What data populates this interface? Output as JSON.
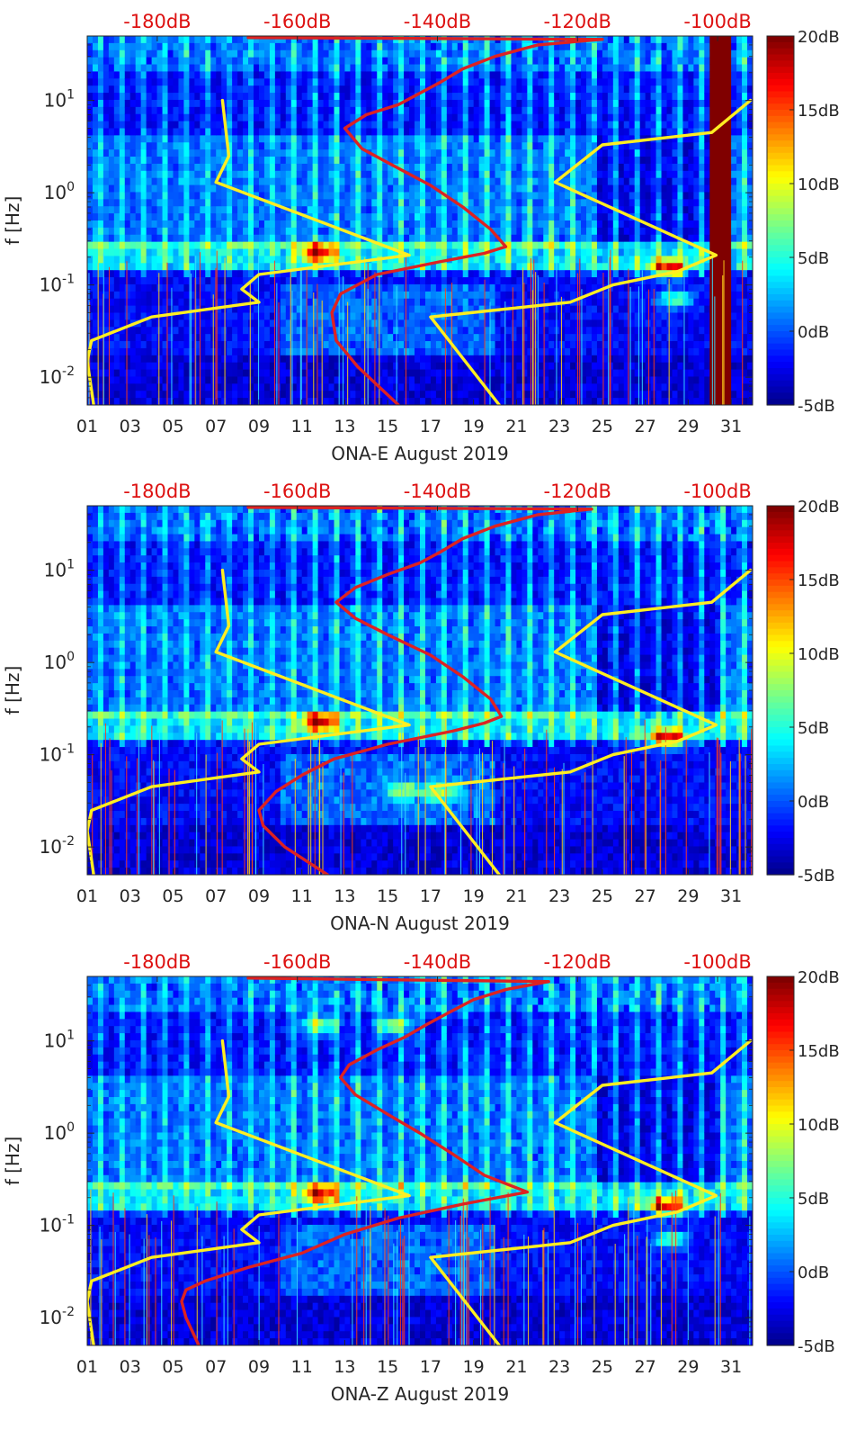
{
  "chart_data": [
    {
      "type": "heatmap",
      "station": "ONA-E",
      "xlabel": "ONA-E August 2019",
      "ylabel": "f [Hz]",
      "x_ticks": [
        "01",
        "03",
        "05",
        "07",
        "09",
        "11",
        "13",
        "15",
        "17",
        "19",
        "21",
        "23",
        "25",
        "27",
        "29",
        "31"
      ],
      "y_ticks": [
        "10^-2",
        "10^-1",
        "10^0",
        "10^1"
      ],
      "top_axis_ticks": [
        "-180dB",
        "-160dB",
        "-140dB",
        "-120dB",
        "-100dB"
      ],
      "colorbar": {
        "ticks": [
          "20dB",
          "15dB",
          "10dB",
          "5dB",
          "0dB",
          "-5dB"
        ],
        "range": [
          -5,
          20
        ],
        "colormap": "jet"
      },
      "xlim": [
        1,
        32
      ],
      "ylim": [
        0.005,
        50
      ],
      "log_y": true,
      "top_xlim": [
        -190,
        -95
      ],
      "highlights": [
        {
          "day": 11.8,
          "f": 0.22,
          "level": 17
        },
        {
          "day": 28.1,
          "f": 0.15,
          "level": 17
        },
        {
          "day": 28.4,
          "f": 0.07,
          "level": 11
        }
      ],
      "saturated_band": {
        "day_from": 30.1,
        "day_to": 31.0
      },
      "series": [
        {
          "role": "yellow-curve",
          "color": "#ffee22",
          "points": [
            [
              1.3,
              0.005
            ],
            [
              1.0,
              0.015
            ],
            [
              1.2,
              0.025
            ],
            [
              4.0,
              0.045
            ],
            [
              9.0,
              0.065
            ],
            [
              8.2,
              0.09
            ],
            [
              9.0,
              0.13
            ],
            [
              16.0,
              0.21
            ],
            [
              7.0,
              1.3
            ],
            [
              7.6,
              2.5
            ],
            [
              7.3,
              10.0
            ]
          ]
        },
        {
          "role": "yellow-curve",
          "color": "#ffee22",
          "points": [
            [
              20.2,
              0.005
            ],
            [
              17.0,
              0.045
            ],
            [
              23.5,
              0.065
            ],
            [
              25.5,
              0.1
            ],
            [
              28.5,
              0.14
            ],
            [
              30.3,
              0.21
            ],
            [
              22.8,
              1.3
            ],
            [
              25.0,
              3.3
            ],
            [
              30.1,
              4.5
            ],
            [
              31.9,
              10.0
            ]
          ]
        },
        {
          "role": "red-curve",
          "color": "#dd2222",
          "points": [
            [
              15.5,
              0.005
            ],
            [
              13.6,
              0.013
            ],
            [
              12.6,
              0.025
            ],
            [
              12.4,
              0.05
            ],
            [
              12.8,
              0.08
            ],
            [
              14.5,
              0.13
            ],
            [
              17.5,
              0.18
            ],
            [
              19.5,
              0.22
            ],
            [
              20.5,
              0.26
            ],
            [
              19.8,
              0.4
            ],
            [
              18.5,
              0.7
            ],
            [
              17.0,
              1.2
            ],
            [
              15.2,
              2.0
            ],
            [
              13.8,
              3.0
            ],
            [
              13.0,
              5.0
            ],
            [
              14.0,
              7.0
            ],
            [
              15.5,
              9.0
            ],
            [
              16.5,
              12.0
            ],
            [
              17.5,
              16.0
            ],
            [
              18.5,
              22.0
            ],
            [
              20.0,
              30.0
            ],
            [
              22.0,
              40.0
            ],
            [
              25.0,
              46.0
            ],
            [
              8.5,
              48.0
            ]
          ]
        }
      ]
    },
    {
      "type": "heatmap",
      "station": "ONA-N",
      "xlabel": "ONA-N August 2019",
      "ylabel": "f [Hz]",
      "x_ticks": [
        "01",
        "03",
        "05",
        "07",
        "09",
        "11",
        "13",
        "15",
        "17",
        "19",
        "21",
        "23",
        "25",
        "27",
        "29",
        "31"
      ],
      "y_ticks": [
        "10^-2",
        "10^-1",
        "10^0",
        "10^1"
      ],
      "top_axis_ticks": [
        "-180dB",
        "-160dB",
        "-140dB",
        "-120dB",
        "-100dB"
      ],
      "colorbar": {
        "ticks": [
          "20dB",
          "15dB",
          "10dB",
          "5dB",
          "0dB",
          "-5dB"
        ],
        "range": [
          -5,
          20
        ],
        "colormap": "jet"
      },
      "xlim": [
        1,
        32
      ],
      "ylim": [
        0.005,
        50
      ],
      "log_y": true,
      "top_xlim": [
        -190,
        -95
      ],
      "highlights": [
        {
          "day": 11.8,
          "f": 0.22,
          "level": 17
        },
        {
          "day": 28.0,
          "f": 0.15,
          "level": 17
        },
        {
          "day": 15.7,
          "f": 0.04,
          "level": 11
        },
        {
          "day": 17.5,
          "f": 0.04,
          "level": 11
        }
      ],
      "saturated_band": {
        "day_from": 28.9,
        "day_to": 29.1
      },
      "series": [
        {
          "role": "yellow-curve",
          "color": "#ffee22",
          "points": [
            [
              1.3,
              0.005
            ],
            [
              1.0,
              0.015
            ],
            [
              1.2,
              0.025
            ],
            [
              4.0,
              0.045
            ],
            [
              9.0,
              0.065
            ],
            [
              8.2,
              0.09
            ],
            [
              9.0,
              0.13
            ],
            [
              16.0,
              0.21
            ],
            [
              7.0,
              1.3
            ],
            [
              7.6,
              2.5
            ],
            [
              7.3,
              10.0
            ]
          ]
        },
        {
          "role": "yellow-curve",
          "color": "#ffee22",
          "points": [
            [
              20.2,
              0.005
            ],
            [
              17.0,
              0.045
            ],
            [
              23.5,
              0.065
            ],
            [
              25.5,
              0.1
            ],
            [
              28.5,
              0.14
            ],
            [
              30.3,
              0.21
            ],
            [
              22.8,
              1.3
            ],
            [
              25.0,
              3.3
            ],
            [
              30.1,
              4.5
            ],
            [
              31.9,
              10.0
            ]
          ]
        },
        {
          "role": "red-curve",
          "color": "#dd2222",
          "points": [
            [
              12.2,
              0.005
            ],
            [
              10.2,
              0.01
            ],
            [
              9.2,
              0.017
            ],
            [
              9.0,
              0.025
            ],
            [
              9.8,
              0.04
            ],
            [
              11.0,
              0.06
            ],
            [
              12.5,
              0.09
            ],
            [
              15.0,
              0.13
            ],
            [
              18.0,
              0.18
            ],
            [
              19.5,
              0.22
            ],
            [
              20.3,
              0.26
            ],
            [
              19.8,
              0.4
            ],
            [
              18.5,
              0.7
            ],
            [
              17.0,
              1.2
            ],
            [
              15.0,
              2.0
            ],
            [
              13.5,
              3.0
            ],
            [
              12.6,
              4.5
            ],
            [
              13.5,
              6.5
            ],
            [
              15.0,
              9.0
            ],
            [
              16.5,
              12.0
            ],
            [
              17.5,
              16.0
            ],
            [
              18.5,
              22.0
            ],
            [
              20.0,
              30.0
            ],
            [
              22.0,
              40.0
            ],
            [
              24.5,
              46.0
            ],
            [
              8.5,
              48.0
            ]
          ]
        }
      ]
    },
    {
      "type": "heatmap",
      "station": "ONA-Z",
      "xlabel": "ONA-Z August 2019",
      "ylabel": "f [Hz]",
      "x_ticks": [
        "01",
        "03",
        "05",
        "07",
        "09",
        "11",
        "13",
        "15",
        "17",
        "19",
        "21",
        "23",
        "25",
        "27",
        "29",
        "31"
      ],
      "y_ticks": [
        "10^-2",
        "10^-1",
        "10^0",
        "10^1"
      ],
      "top_axis_ticks": [
        "-180dB",
        "-160dB",
        "-140dB",
        "-120dB",
        "-100dB"
      ],
      "colorbar": {
        "ticks": [
          "20dB",
          "15dB",
          "10dB",
          "5dB",
          "0dB",
          "-5dB"
        ],
        "range": [
          -5,
          20
        ],
        "colormap": "jet"
      },
      "xlim": [
        1,
        32
      ],
      "ylim": [
        0.005,
        50
      ],
      "log_y": true,
      "top_xlim": [
        -190,
        -95
      ],
      "highlights": [
        {
          "day": 11.9,
          "f": 0.22,
          "level": 17
        },
        {
          "day": 28.0,
          "f": 0.16,
          "level": 17
        },
        {
          "day": 28.2,
          "f": 0.07,
          "level": 11
        },
        {
          "day": 11.8,
          "f": 15.0,
          "level": 12
        },
        {
          "day": 15.3,
          "f": 15.0,
          "level": 12
        }
      ],
      "saturated_band": null,
      "series": [
        {
          "role": "yellow-curve",
          "color": "#ffee22",
          "points": [
            [
              1.3,
              0.005
            ],
            [
              1.0,
              0.015
            ],
            [
              1.2,
              0.025
            ],
            [
              4.0,
              0.045
            ],
            [
              9.0,
              0.065
            ],
            [
              8.2,
              0.09
            ],
            [
              9.0,
              0.13
            ],
            [
              16.0,
              0.21
            ],
            [
              7.0,
              1.3
            ],
            [
              7.6,
              2.5
            ],
            [
              7.3,
              10.0
            ]
          ]
        },
        {
          "role": "yellow-curve",
          "color": "#ffee22",
          "points": [
            [
              20.2,
              0.005
            ],
            [
              17.0,
              0.045
            ],
            [
              23.5,
              0.065
            ],
            [
              25.5,
              0.1
            ],
            [
              28.5,
              0.14
            ],
            [
              30.3,
              0.21
            ],
            [
              22.8,
              1.3
            ],
            [
              25.0,
              3.3
            ],
            [
              30.1,
              4.5
            ],
            [
              31.9,
              10.0
            ]
          ]
        },
        {
          "role": "red-curve",
          "color": "#dd2222",
          "points": [
            [
              6.2,
              0.005
            ],
            [
              5.6,
              0.01
            ],
            [
              5.4,
              0.015
            ],
            [
              5.6,
              0.02
            ],
            [
              6.5,
              0.025
            ],
            [
              8.5,
              0.035
            ],
            [
              11.0,
              0.05
            ],
            [
              13.0,
              0.08
            ],
            [
              15.5,
              0.12
            ],
            [
              18.5,
              0.17
            ],
            [
              21.5,
              0.23
            ],
            [
              19.5,
              0.35
            ],
            [
              18.0,
              0.6
            ],
            [
              16.5,
              1.0
            ],
            [
              15.0,
              1.6
            ],
            [
              13.5,
              2.6
            ],
            [
              12.8,
              4.0
            ],
            [
              13.2,
              5.5
            ],
            [
              14.5,
              8.0
            ],
            [
              15.8,
              11.0
            ],
            [
              16.8,
              15.0
            ],
            [
              17.8,
              20.0
            ],
            [
              19.0,
              28.0
            ],
            [
              20.5,
              36.0
            ],
            [
              22.5,
              44.0
            ],
            [
              8.5,
              48.0
            ]
          ]
        }
      ]
    }
  ]
}
